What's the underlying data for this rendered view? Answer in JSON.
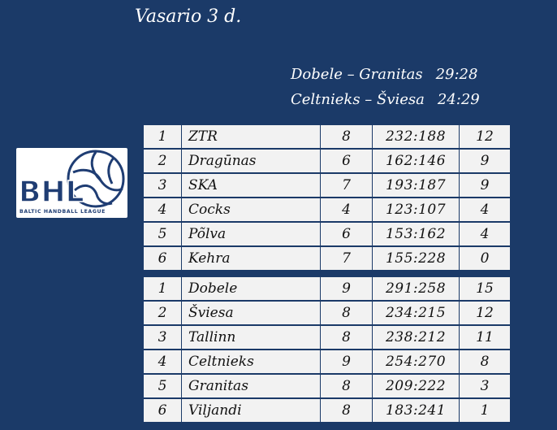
{
  "title": "Vasario 3 d.",
  "results": [
    {
      "teams": "Dobele – Granitas",
      "score": "29:28"
    },
    {
      "teams": "Celtnieks – Šviesa",
      "score": "24:29"
    }
  ],
  "logo": {
    "letters": "BHL",
    "caption": "BALTIC HANDBALL LEAGUE"
  },
  "standings_a": [
    {
      "pos": "1",
      "team": "ZTR",
      "games": "8",
      "goals": "232:188",
      "points": "12"
    },
    {
      "pos": "2",
      "team": "Dragūnas",
      "games": "6",
      "goals": "162:146",
      "points": "9"
    },
    {
      "pos": "3",
      "team": "SKA",
      "games": "7",
      "goals": "193:187",
      "points": "9"
    },
    {
      "pos": "4",
      "team": "Cocks",
      "games": "4",
      "goals": "123:107",
      "points": "4"
    },
    {
      "pos": "5",
      "team": "Põlva",
      "games": "6",
      "goals": "153:162",
      "points": "4"
    },
    {
      "pos": "6",
      "team": "Kehra",
      "games": "7",
      "goals": "155:228",
      "points": "0"
    }
  ],
  "standings_b": [
    {
      "pos": "1",
      "team": "Dobele",
      "games": "9",
      "goals": "291:258",
      "points": "15"
    },
    {
      "pos": "2",
      "team": "Šviesa",
      "games": "8",
      "goals": "234:215",
      "points": "12"
    },
    {
      "pos": "3",
      "team": "Tallinn",
      "games": "8",
      "goals": "238:212",
      "points": "11"
    },
    {
      "pos": "4",
      "team": "Celtnieks",
      "games": "9",
      "goals": "254:270",
      "points": "8"
    },
    {
      "pos": "5",
      "team": "Granitas",
      "games": "8",
      "goals": "209:222",
      "points": "3"
    },
    {
      "pos": "6",
      "team": "Viljandi",
      "games": "8",
      "goals": "183:241",
      "points": "1"
    }
  ],
  "colors": {
    "background": "#1b3a68",
    "table_fill": "#f2f2f2",
    "logo_blue": "#1f3d73"
  }
}
